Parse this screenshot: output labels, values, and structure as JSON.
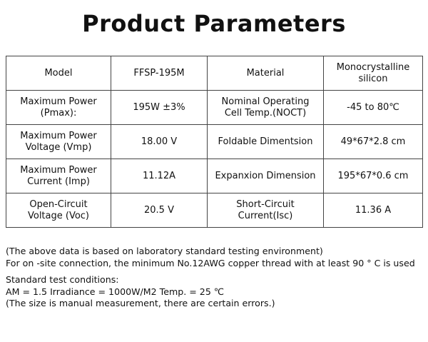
{
  "header": {
    "title": "Product Parameters"
  },
  "table": {
    "rows": [
      [
        "Model",
        "FFSP-195M",
        "Material",
        "Monocrystalline\nsilicon"
      ],
      [
        "Maximum Power\n(Pmax):",
        "195W ±3%",
        "Nominal Operating\nCell Temp.(NOCT)",
        "-45 to 80℃"
      ],
      [
        "Maximum Power\nVoltage (Vmp)",
        "18.00 V",
        "Foldable Dimentsion",
        "49*67*2.8 cm"
      ],
      [
        "Maximum Power\nCurrent (Imp)",
        "11.12A",
        "Expanxion Dimension",
        "195*67*0.6 cm"
      ],
      [
        "Open-Circuit\nVoltage (Voc)",
        "20.5 V",
        "Short-Circuit\nCurrent(Isc)",
        "11.36 A"
      ]
    ]
  },
  "notes": [
    [
      "(The above data is based on laboratory standard testing environment)",
      "For on -site connection, the minimum No.12AWG copper thread with at least 90 ° C is used"
    ],
    [
      "Standard test conditions:",
      "AM = 1.5 Irradiance = 1000W/M2 Temp. = 25 ℃",
      "(The size is manual measurement, there are certain errors.)"
    ]
  ]
}
